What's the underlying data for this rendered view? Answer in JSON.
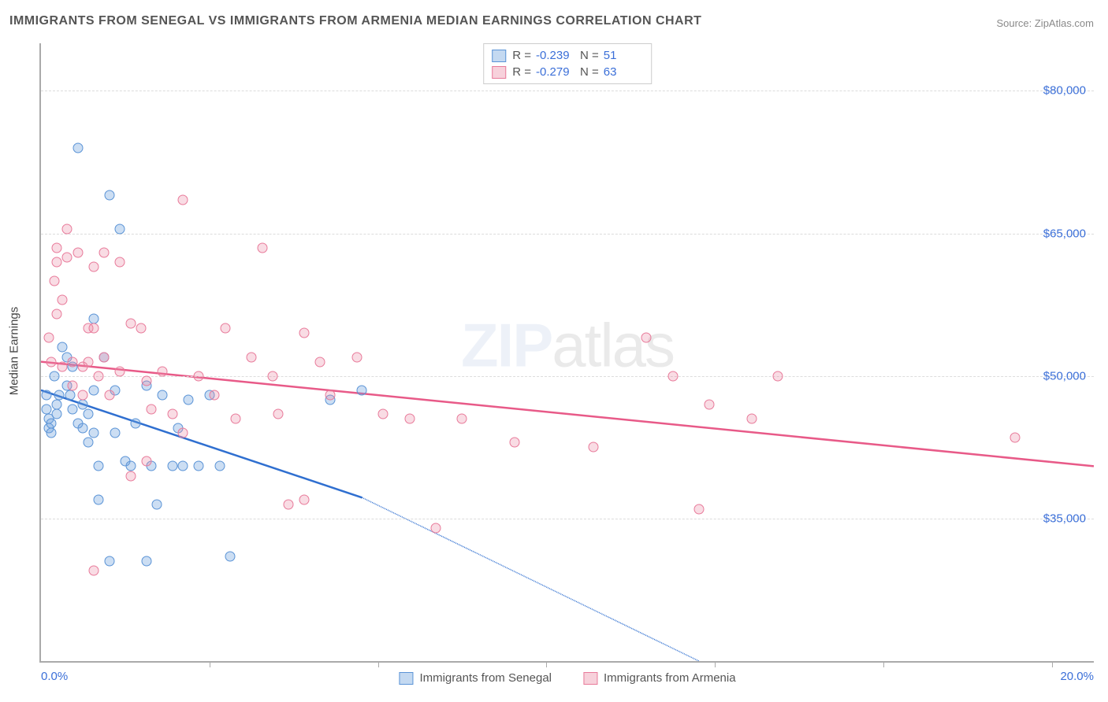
{
  "title": "IMMIGRANTS FROM SENEGAL VS IMMIGRANTS FROM ARMENIA MEDIAN EARNINGS CORRELATION CHART",
  "source_prefix": "Source: ",
  "source_name": "ZipAtlas.com",
  "watermark_a": "ZIP",
  "watermark_b": "atlas",
  "chart": {
    "type": "scatter",
    "y_axis": {
      "title": "Median Earnings",
      "min": 20000,
      "max": 85000,
      "ticks": [
        35000,
        50000,
        65000,
        80000
      ],
      "tick_labels": [
        "$35,000",
        "$50,000",
        "$65,000",
        "$80,000"
      ],
      "label_color": "#3b6fd8",
      "grid_color": "#dcdcdc"
    },
    "x_axis": {
      "min": 0,
      "max": 20,
      "left_label": "0.0%",
      "right_label": "20.0%",
      "label_color": "#3b6fd8",
      "tick_positions_pct": [
        16,
        32,
        48,
        64,
        80,
        96
      ]
    },
    "series": [
      {
        "id": "s1",
        "name": "Immigrants from Senegal",
        "marker_fill": "rgba(108,160,220,0.35)",
        "marker_stroke": "#5a93d6",
        "line_color": "#2f6fd0",
        "r_value": "-0.239",
        "n_value": "51",
        "trend": {
          "x1": 0,
          "y1": 48500,
          "x2": 6.1,
          "y2": 37200,
          "dash_x2": 12.5,
          "dash_y2": 20000
        },
        "points": [
          [
            0.1,
            48000
          ],
          [
            0.1,
            46500
          ],
          [
            0.15,
            45500
          ],
          [
            0.15,
            44500
          ],
          [
            0.2,
            45000
          ],
          [
            0.2,
            44000
          ],
          [
            0.25,
            50000
          ],
          [
            0.3,
            47000
          ],
          [
            0.3,
            46000
          ],
          [
            0.35,
            48000
          ],
          [
            0.4,
            53000
          ],
          [
            0.5,
            52000
          ],
          [
            0.5,
            49000
          ],
          [
            0.55,
            48000
          ],
          [
            0.6,
            46500
          ],
          [
            0.6,
            51000
          ],
          [
            0.7,
            74000
          ],
          [
            0.7,
            45000
          ],
          [
            0.8,
            44500
          ],
          [
            0.8,
            47000
          ],
          [
            0.9,
            46000
          ],
          [
            0.9,
            43000
          ],
          [
            1.0,
            48500
          ],
          [
            1.0,
            44000
          ],
          [
            1.1,
            40500
          ],
          [
            1.1,
            37000
          ],
          [
            1.2,
            52000
          ],
          [
            1.3,
            69000
          ],
          [
            1.4,
            48500
          ],
          [
            1.4,
            44000
          ],
          [
            1.5,
            65500
          ],
          [
            1.6,
            41000
          ],
          [
            1.7,
            40500
          ],
          [
            1.8,
            45000
          ],
          [
            2.0,
            49000
          ],
          [
            2.1,
            40500
          ],
          [
            2.2,
            36500
          ],
          [
            2.3,
            48000
          ],
          [
            2.5,
            40500
          ],
          [
            2.6,
            44500
          ],
          [
            2.7,
            40500
          ],
          [
            2.8,
            47500
          ],
          [
            3.0,
            40500
          ],
          [
            3.2,
            48000
          ],
          [
            3.4,
            40500
          ],
          [
            3.6,
            31000
          ],
          [
            2.0,
            30500
          ],
          [
            1.3,
            30500
          ],
          [
            5.5,
            47500
          ],
          [
            6.1,
            48500
          ],
          [
            1.0,
            56000
          ]
        ]
      },
      {
        "id": "s2",
        "name": "Immigrants from Armenia",
        "marker_fill": "rgba(235,140,165,0.30)",
        "marker_stroke": "#e87a9a",
        "line_color": "#e85a88",
        "r_value": "-0.279",
        "n_value": "63",
        "trend": {
          "x1": 0,
          "y1": 51500,
          "x2": 20,
          "y2": 40500
        },
        "points": [
          [
            0.2,
            51500
          ],
          [
            0.25,
            60000
          ],
          [
            0.3,
            63500
          ],
          [
            0.3,
            62000
          ],
          [
            0.4,
            58000
          ],
          [
            0.4,
            51000
          ],
          [
            0.5,
            65500
          ],
          [
            0.5,
            62500
          ],
          [
            0.6,
            51500
          ],
          [
            0.6,
            49000
          ],
          [
            0.7,
            63000
          ],
          [
            0.8,
            51000
          ],
          [
            0.8,
            48000
          ],
          [
            0.9,
            55000
          ],
          [
            0.9,
            51500
          ],
          [
            1.0,
            61500
          ],
          [
            1.0,
            55000
          ],
          [
            1.1,
            50000
          ],
          [
            1.2,
            63000
          ],
          [
            1.2,
            52000
          ],
          [
            1.3,
            48000
          ],
          [
            1.5,
            62000
          ],
          [
            1.5,
            50500
          ],
          [
            1.7,
            55500
          ],
          [
            1.7,
            39500
          ],
          [
            1.9,
            55000
          ],
          [
            2.0,
            49500
          ],
          [
            2.0,
            41000
          ],
          [
            2.1,
            46500
          ],
          [
            2.3,
            50500
          ],
          [
            2.5,
            46000
          ],
          [
            2.7,
            68500
          ],
          [
            2.7,
            44000
          ],
          [
            3.0,
            50000
          ],
          [
            3.3,
            48000
          ],
          [
            3.5,
            55000
          ],
          [
            3.7,
            45500
          ],
          [
            4.0,
            52000
          ],
          [
            4.2,
            63500
          ],
          [
            4.4,
            50000
          ],
          [
            4.5,
            46000
          ],
          [
            4.7,
            36500
          ],
          [
            5.0,
            54500
          ],
          [
            5.0,
            37000
          ],
          [
            5.3,
            51500
          ],
          [
            5.5,
            48000
          ],
          [
            6.0,
            52000
          ],
          [
            6.5,
            46000
          ],
          [
            7.0,
            45500
          ],
          [
            7.5,
            34000
          ],
          [
            8.0,
            45500
          ],
          [
            9.0,
            43000
          ],
          [
            10.5,
            42500
          ],
          [
            11.5,
            54000
          ],
          [
            12.0,
            50000
          ],
          [
            12.5,
            36000
          ],
          [
            12.7,
            47000
          ],
          [
            13.5,
            45500
          ],
          [
            14.0,
            50000
          ],
          [
            1.0,
            29500
          ],
          [
            18.5,
            43500
          ],
          [
            0.3,
            56500
          ],
          [
            0.15,
            54000
          ]
        ]
      }
    ],
    "legend_top": {
      "r_label": "R =",
      "n_label": "N ="
    },
    "background_color": "#ffffff"
  }
}
